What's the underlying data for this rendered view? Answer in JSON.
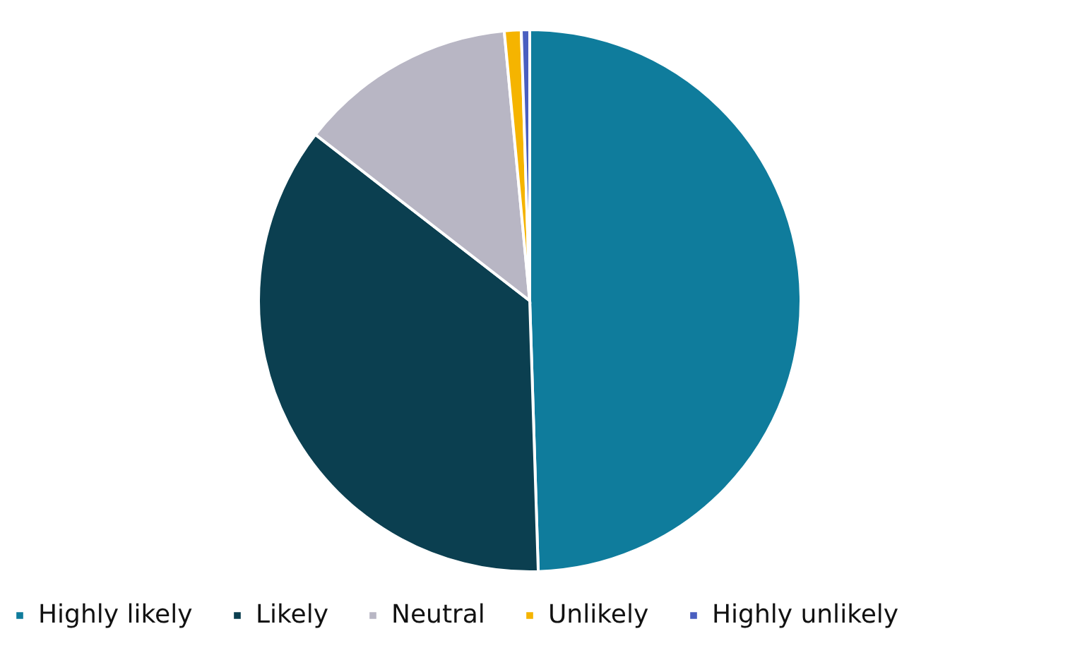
{
  "chart_data": {
    "type": "pie",
    "categories": [
      "Highly likely",
      "Likely",
      "Neutral",
      "Unlikely",
      "Highly unlikely"
    ],
    "values": [
      49.5,
      36,
      13,
      1,
      0.5
    ],
    "colors": [
      "#0f7c9c",
      "#0b3f50",
      "#b8b6c4",
      "#f5b400",
      "#4a5fc0"
    ],
    "legend": "bottom"
  }
}
